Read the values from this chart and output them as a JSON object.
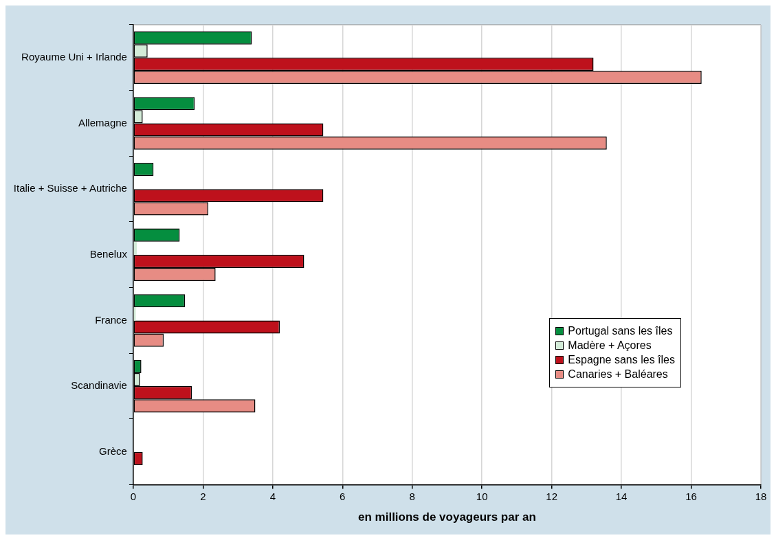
{
  "chart_data": {
    "type": "bar",
    "orientation": "horizontal",
    "xlabel": "en millions de voyageurs par an",
    "categories": [
      "Royaume Uni + Irlande",
      "Allemagne",
      "Italie + Suisse + Autriche",
      "Benelux",
      "France",
      "Scandinavie",
      "Grèce"
    ],
    "series": [
      {
        "name": "Portugal sans les îles",
        "color": "#058e3f",
        "values": [
          3.4,
          1.76,
          0.58,
          1.33,
          1.48,
          0.23,
          0
        ]
      },
      {
        "name": "Madère + Açores",
        "color": "#d3ebd8",
        "values": [
          0.41,
          0.27,
          null,
          0.1,
          0.07,
          0.19,
          0
        ]
      },
      {
        "name": "Espagne sans les îles",
        "color": "#be111c",
        "values": [
          13.2,
          5.45,
          5.45,
          4.9,
          4.2,
          1.68,
          0.27
        ]
      },
      {
        "name": "Canaries + Baléares",
        "color": "#e78c84",
        "values": [
          16.3,
          13.58,
          2.15,
          2.36,
          0.87,
          3.5,
          null
        ]
      }
    ],
    "xlim": [
      0,
      18
    ],
    "xticks": [
      0,
      2,
      4,
      6,
      8,
      10,
      12,
      14,
      16,
      18
    ],
    "grid": "x",
    "legend": "right"
  }
}
